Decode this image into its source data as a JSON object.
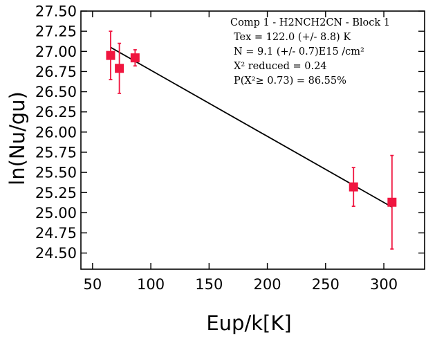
{
  "chart_data": {
    "type": "scatter",
    "xlabel": "Eup/k[K]",
    "ylabel": "ln(Nu/gu)",
    "xlim": [
      40,
      335
    ],
    "ylim": [
      24.3,
      27.5
    ],
    "x_ticks": [
      50,
      100,
      150,
      200,
      250,
      300
    ],
    "y_ticks": [
      24.5,
      24.75,
      25.0,
      25.25,
      25.5,
      25.75,
      26.0,
      26.25,
      26.5,
      26.75,
      27.0,
      27.25,
      27.5
    ],
    "y_tick_labels": [
      "24.50",
      "24.75",
      "25.00",
      "25.25",
      "25.50",
      "25.75",
      "26.00",
      "26.25",
      "26.50",
      "26.75",
      "27.00",
      "27.25",
      "27.50"
    ],
    "x_tick_labels": [
      "50",
      "100",
      "150",
      "200",
      "250",
      "300"
    ],
    "grid": false,
    "points": [
      {
        "x": 65.5,
        "y": 26.95,
        "err": 0.3
      },
      {
        "x": 73.0,
        "y": 26.79,
        "err": 0.31
      },
      {
        "x": 86.5,
        "y": 26.92,
        "err": 0.1
      },
      {
        "x": 274.0,
        "y": 25.32,
        "err": 0.24
      },
      {
        "x": 307.0,
        "y": 25.13,
        "err": 0.58
      }
    ],
    "fit_line": {
      "x": [
        65.5,
        307.0
      ],
      "y": [
        27.05,
        25.07
      ]
    },
    "marker_color": "#f0153f",
    "line_color": "#000000",
    "annotation": {
      "placement": "top-right",
      "lines": [
        "Comp 1 - H2NCH2CN - Block 1",
        "Tex =  122.0 (+/- 8.8) K",
        "N = 9.1 (+/- 0.7)E15 /cm²",
        "X² reduced = 0.24",
        "P(X²≥ 0.73) = 86.55%"
      ]
    }
  }
}
